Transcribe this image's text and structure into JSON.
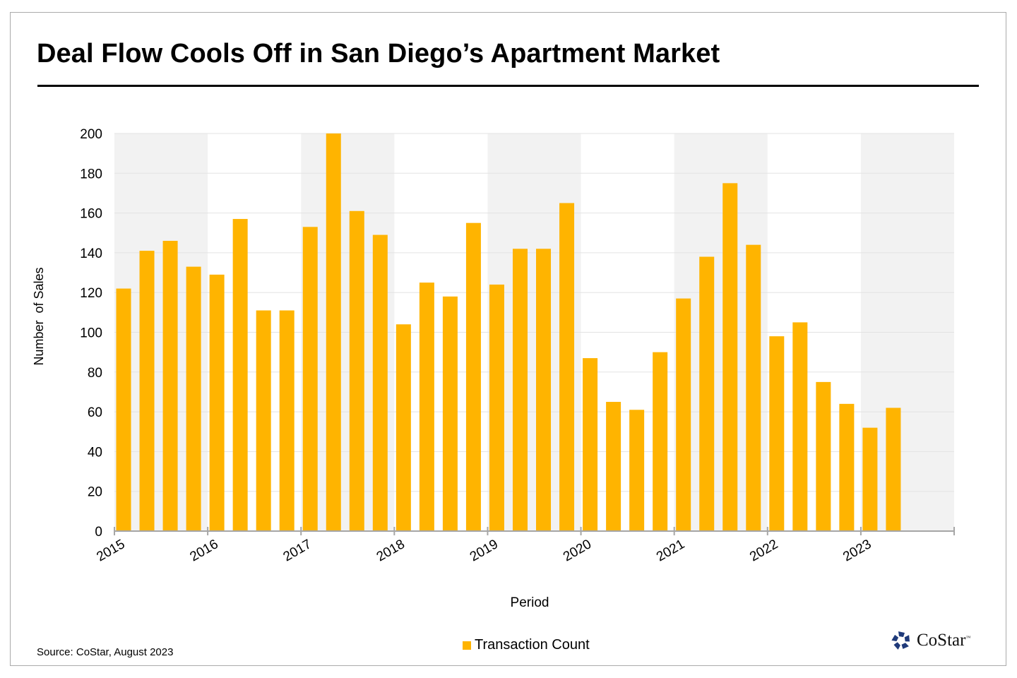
{
  "title": "Deal Flow Cools Off in San Diego’s Apartment Market",
  "source": "Source: CoStar, August 2023",
  "logo": {
    "name": "CoStar",
    "tm": "™",
    "icon": "costar-star-icon"
  },
  "colors": {
    "bar": "#FFB400",
    "band": "#F2F2F2",
    "grid": "#E3E3E3",
    "axis": "#A6A6A6",
    "logo": "#1F3A7A"
  },
  "chart_data": {
    "type": "bar",
    "title": "Deal Flow Cools Off in San Diego’s Apartment Market",
    "xlabel": "Period",
    "ylabel": "Number  of Sales",
    "ylim": [
      0,
      200
    ],
    "yticks": [
      0,
      20,
      40,
      60,
      80,
      100,
      120,
      140,
      160,
      180,
      200
    ],
    "xticks": [
      "2015",
      "2016",
      "2017",
      "2018",
      "2019",
      "2020",
      "2021",
      "2022",
      "2023"
    ],
    "x_range_years": [
      2015,
      2024
    ],
    "shaded_years": [
      "2015",
      "2017",
      "2019",
      "2021",
      "2023"
    ],
    "grid": true,
    "legend_position": "bottom-center",
    "categories": [
      "2015 Q1",
      "2015 Q2",
      "2015 Q3",
      "2015 Q4",
      "2016 Q1",
      "2016 Q2",
      "2016 Q3",
      "2016 Q4",
      "2017 Q1",
      "2017 Q2",
      "2017 Q3",
      "2017 Q4",
      "2018 Q1",
      "2018 Q2",
      "2018 Q3",
      "2018 Q4",
      "2019 Q1",
      "2019 Q2",
      "2019 Q3",
      "2019 Q4",
      "2020 Q1",
      "2020 Q2",
      "2020 Q3",
      "2020 Q4",
      "2021 Q1",
      "2021 Q2",
      "2021 Q3",
      "2021 Q4",
      "2022 Q1",
      "2022 Q2",
      "2022 Q3",
      "2022 Q4",
      "2023 Q1",
      "2023 Q2"
    ],
    "series": [
      {
        "name": "Transaction Count",
        "values": [
          122,
          141,
          146,
          133,
          129,
          157,
          111,
          111,
          153,
          200,
          161,
          149,
          104,
          125,
          118,
          155,
          124,
          142,
          142,
          165,
          87,
          65,
          61,
          90,
          117,
          138,
          175,
          144,
          98,
          105,
          75,
          64,
          52,
          62
        ]
      }
    ]
  }
}
